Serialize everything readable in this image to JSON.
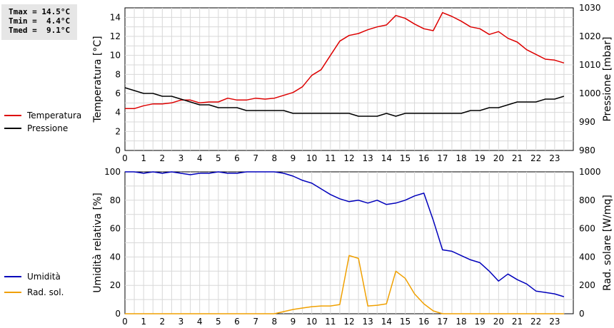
{
  "stats": {
    "tmax": "Tmax = 14.5°C",
    "tmin": "Tmin =  4.4°C",
    "tmed": "Tmed =  9.1°C"
  },
  "colors": {
    "temperature": "#dd0000",
    "pressure": "#000000",
    "humidity": "#0000bb",
    "radiation": "#f0a000"
  },
  "chart_data": [
    {
      "type": "line",
      "x_ticks": [
        "0",
        "1",
        "2",
        "3",
        "4",
        "5",
        "6",
        "7",
        "8",
        "9",
        "10",
        "11",
        "12",
        "13",
        "14",
        "15",
        "16",
        "17",
        "18",
        "19",
        "20",
        "21",
        "22",
        "23"
      ],
      "xlim": [
        0,
        24
      ],
      "ylabel_left": "Temperatura [°C]",
      "ylim_left": [
        0,
        15
      ],
      "yticks_left": [
        "0",
        "2",
        "4",
        "6",
        "8",
        "10",
        "12",
        "14"
      ],
      "ylabel_right": "Pressione [mbar]",
      "ylim_right": [
        980,
        1030
      ],
      "yticks_right": [
        "980",
        "990",
        "1000",
        "1010",
        "1020",
        "1030"
      ],
      "grid": true,
      "legend_placement": "left",
      "series": [
        {
          "name": "Temperatura",
          "axis": "left",
          "x": [
            0,
            0.5,
            1,
            1.5,
            2,
            2.5,
            3,
            3.5,
            4,
            4.5,
            5,
            5.5,
            6,
            6.5,
            7,
            7.5,
            8,
            8.5,
            9,
            9.5,
            10,
            10.5,
            11,
            11.5,
            12,
            12.5,
            13,
            13.5,
            14,
            14.5,
            15,
            15.5,
            16,
            16.5,
            17,
            17.5,
            18,
            18.5,
            19,
            19.5,
            20,
            20.5,
            21,
            21.5,
            22,
            22.5,
            23,
            23.5
          ],
          "values": [
            4.4,
            4.4,
            4.7,
            4.9,
            4.9,
            5.0,
            5.3,
            5.3,
            5.0,
            5.1,
            5.1,
            5.5,
            5.3,
            5.3,
            5.5,
            5.4,
            5.5,
            5.8,
            6.1,
            6.7,
            7.9,
            8.5,
            10.0,
            11.5,
            12.1,
            12.3,
            12.7,
            13.0,
            13.2,
            14.2,
            13.9,
            13.3,
            12.8,
            12.6,
            14.5,
            14.1,
            13.6,
            13.0,
            12.8,
            12.2,
            12.5,
            11.8,
            11.4,
            10.6,
            10.1,
            9.6,
            9.5,
            9.2
          ]
        },
        {
          "name": "Pressione",
          "axis": "right",
          "x": [
            0,
            0.5,
            1,
            1.5,
            2,
            2.5,
            3,
            3.5,
            4,
            4.5,
            5,
            5.5,
            6,
            6.5,
            7,
            7.5,
            8,
            8.5,
            9,
            9.5,
            10,
            10.5,
            11,
            11.5,
            12,
            12.5,
            13,
            13.5,
            14,
            14.5,
            15,
            15.5,
            16,
            16.5,
            17,
            17.5,
            18,
            18.5,
            19,
            19.5,
            20,
            20.5,
            21,
            21.5,
            22,
            22.5,
            23,
            23.5
          ],
          "values": [
            1002,
            1001,
            1000,
            1000,
            999,
            999,
            998,
            997,
            996,
            996,
            995,
            995,
            995,
            994,
            994,
            994,
            994,
            994,
            993,
            993,
            993,
            993,
            993,
            993,
            993,
            992,
            992,
            992,
            993,
            992,
            993,
            993,
            993,
            993,
            993,
            993,
            993,
            994,
            994,
            995,
            995,
            996,
            997,
            997,
            997,
            998,
            998,
            999
          ]
        }
      ]
    },
    {
      "type": "line",
      "x_ticks": [
        "0",
        "1",
        "2",
        "3",
        "4",
        "5",
        "6",
        "7",
        "8",
        "9",
        "10",
        "11",
        "12",
        "13",
        "14",
        "15",
        "16",
        "17",
        "18",
        "19",
        "20",
        "21",
        "22",
        "23"
      ],
      "xlim": [
        0,
        24
      ],
      "ylabel_left": "Umidità relativa [%]",
      "ylim_left": [
        0,
        100
      ],
      "yticks_left": [
        "0",
        "20",
        "40",
        "60",
        "80",
        "100"
      ],
      "ylabel_right": "Rad. solare [W/mq]",
      "ylim_right": [
        0,
        1000
      ],
      "yticks_right": [
        "0",
        "200",
        "400",
        "600",
        "800",
        "1000"
      ],
      "grid": true,
      "legend_placement": "left",
      "series": [
        {
          "name": "Umidità",
          "axis": "left",
          "x": [
            0,
            0.5,
            1,
            1.5,
            2,
            2.5,
            3,
            3.5,
            4,
            4.5,
            5,
            5.5,
            6,
            6.5,
            7,
            7.5,
            8,
            8.5,
            9,
            9.5,
            10,
            10.5,
            11,
            11.5,
            12,
            12.5,
            13,
            13.5,
            14,
            14.5,
            15,
            15.5,
            16,
            16.5,
            17,
            17.5,
            18,
            18.5,
            19,
            19.5,
            20,
            20.5,
            21,
            21.5,
            22,
            22.5,
            23,
            23.5
          ],
          "values": [
            100,
            100,
            99,
            100,
            99,
            100,
            99,
            98,
            99,
            99,
            100,
            99,
            99,
            100,
            100,
            100,
            100,
            99,
            97,
            94,
            92,
            88,
            84,
            81,
            79,
            80,
            78,
            80,
            77,
            78,
            80,
            83,
            85,
            66,
            45,
            44,
            41,
            38,
            36,
            30,
            23,
            28,
            24,
            21,
            16,
            15,
            14,
            12
          ]
        },
        {
          "name": "Rad. sol.",
          "axis": "right",
          "x": [
            0,
            0.5,
            1,
            1.5,
            2,
            2.5,
            3,
            3.5,
            4,
            4.5,
            5,
            5.5,
            6,
            6.5,
            7,
            7.5,
            8,
            8.5,
            9,
            9.5,
            10,
            10.5,
            11,
            11.5,
            12,
            12.5,
            13,
            13.5,
            14,
            14.5,
            15,
            15.5,
            16,
            16.5,
            17,
            17.5,
            18,
            18.5,
            19,
            19.5,
            20,
            20.5,
            21,
            21.5,
            22,
            22.5,
            23,
            23.5
          ],
          "values": [
            0,
            0,
            0,
            0,
            0,
            0,
            0,
            0,
            0,
            0,
            0,
            0,
            0,
            0,
            0,
            0,
            0,
            15,
            30,
            40,
            50,
            55,
            55,
            65,
            410,
            390,
            55,
            60,
            70,
            300,
            250,
            140,
            70,
            20,
            0,
            0,
            0,
            0,
            0,
            0,
            0,
            0,
            0,
            0,
            0,
            0,
            0,
            0
          ]
        }
      ]
    }
  ]
}
